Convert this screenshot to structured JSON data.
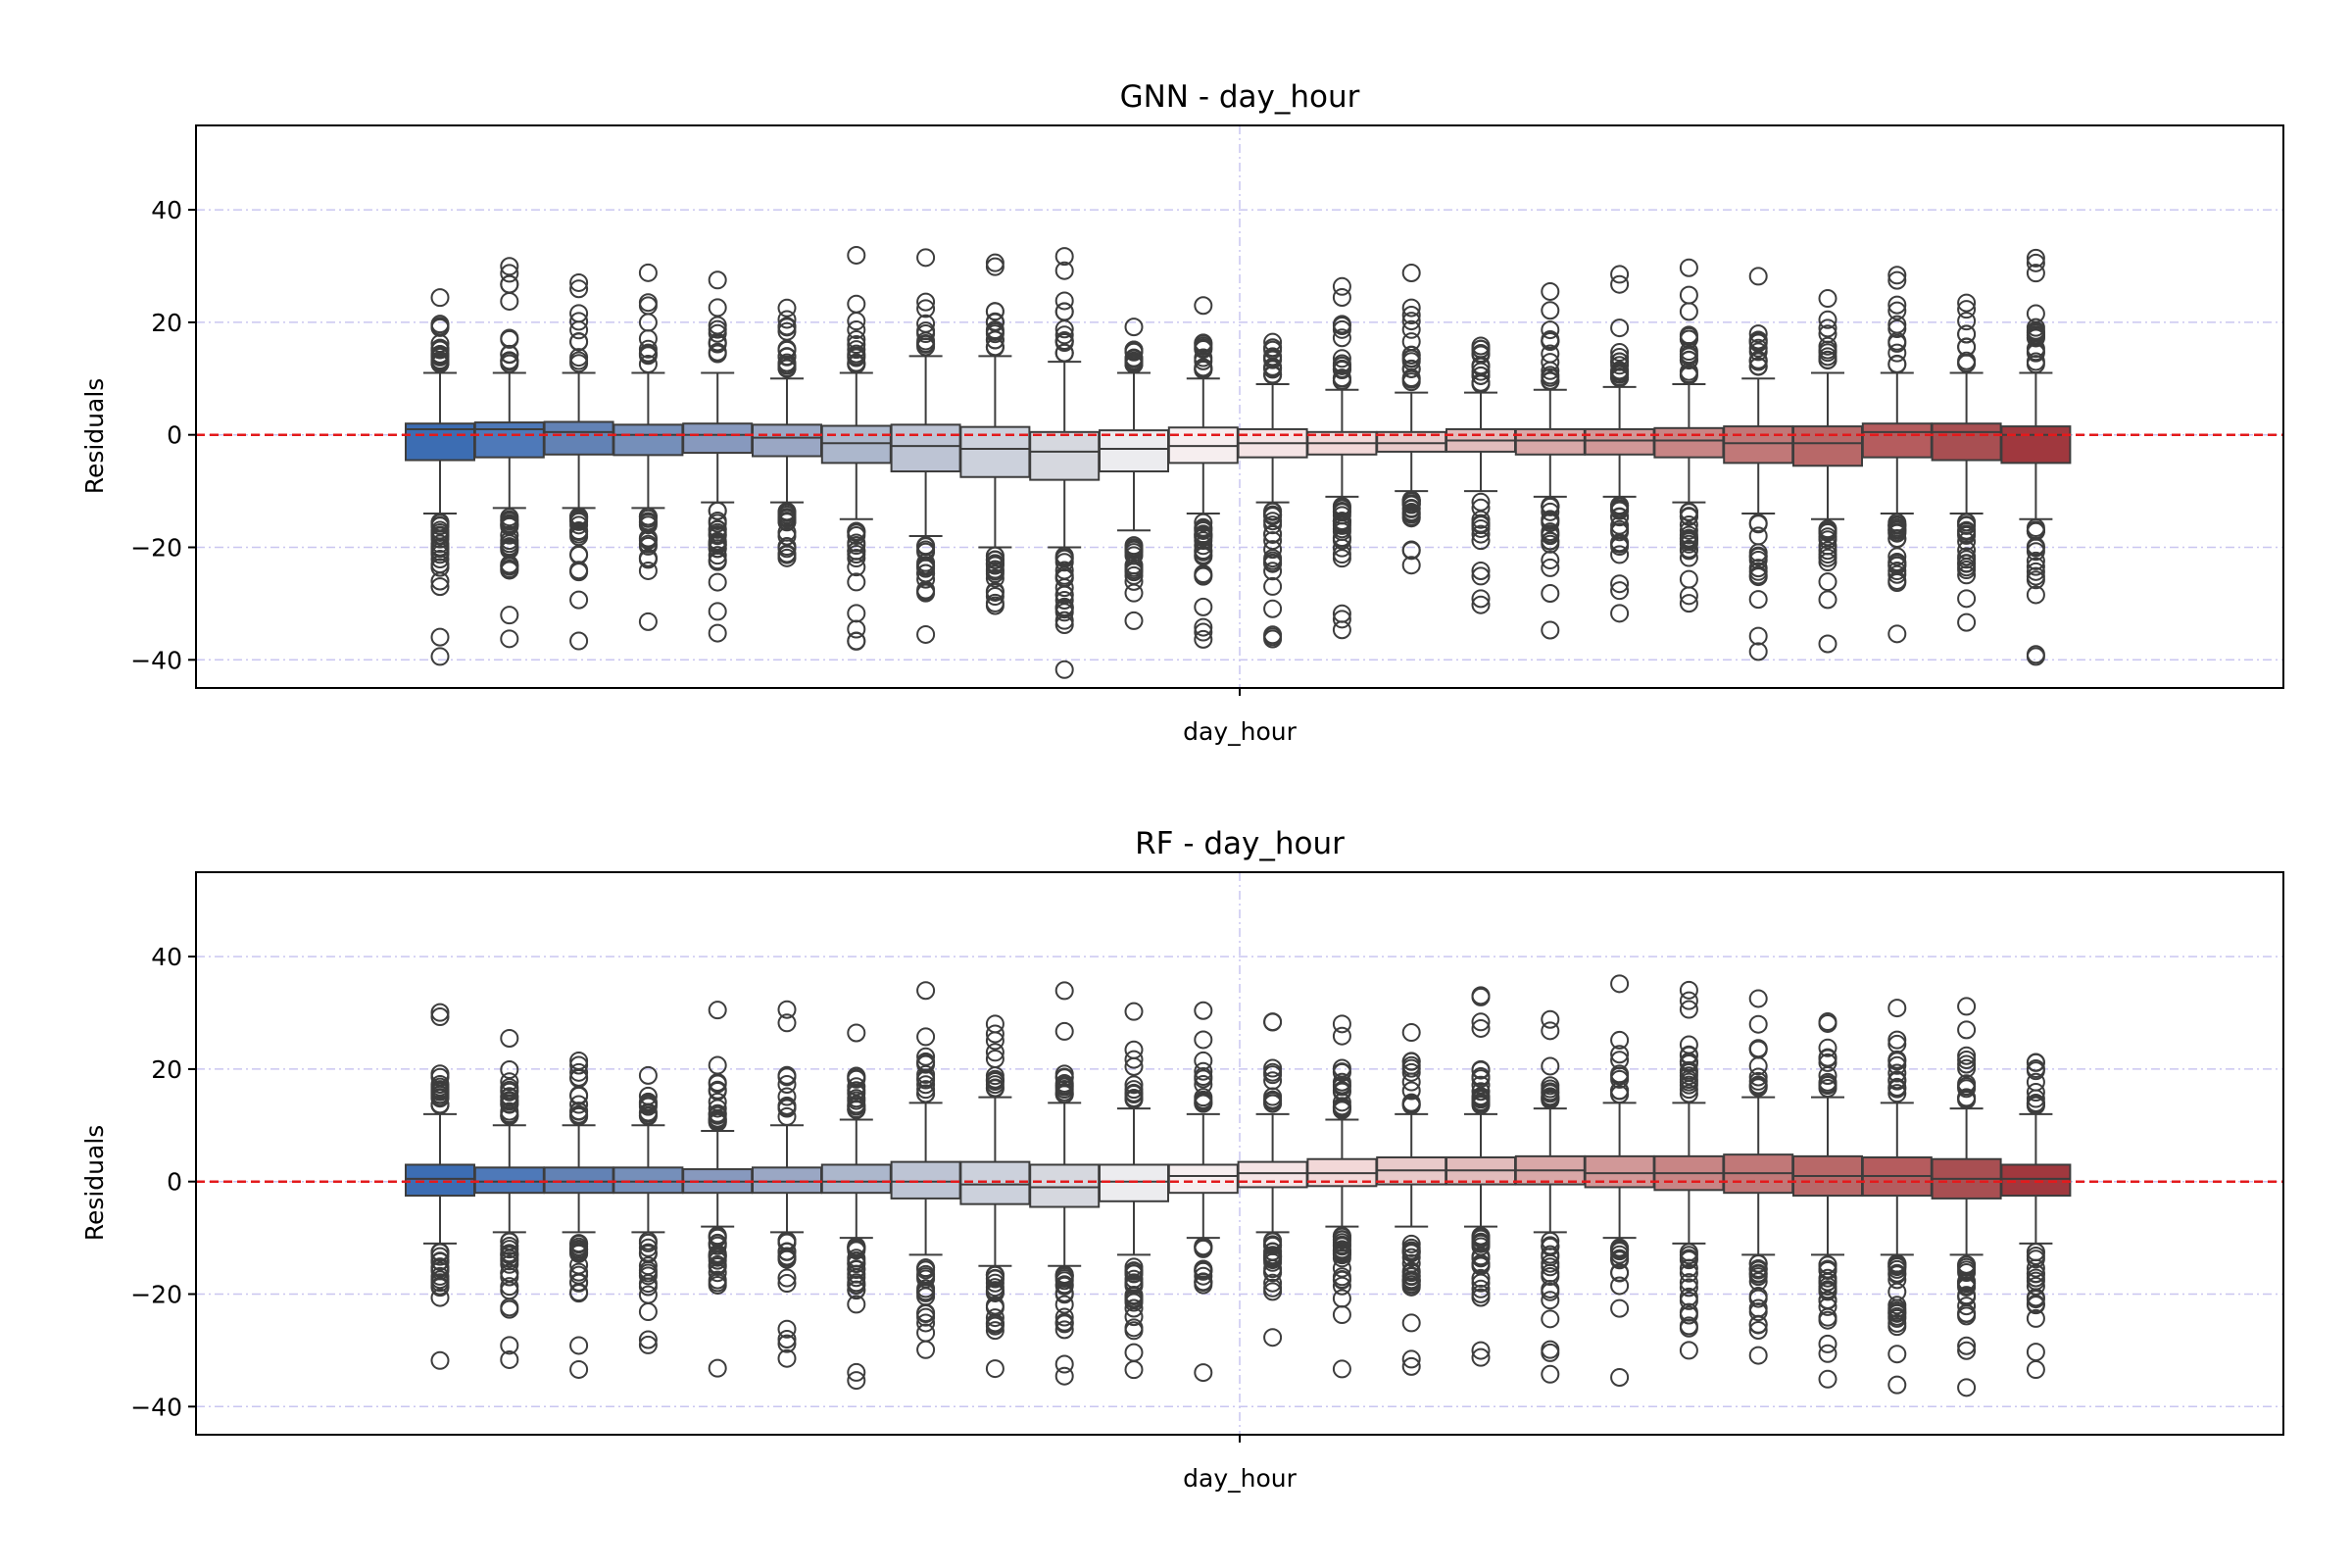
{
  "chart_data": [
    {
      "type": "box",
      "title": "GNN - day_hour",
      "xlabel": "day_hour",
      "ylabel": "Residuals",
      "ylim": [
        -45,
        55
      ],
      "yticks": [
        -40,
        -20,
        0,
        20,
        40
      ],
      "grid": true,
      "reference_line": 0,
      "colors": [
        "#3c6db3",
        "#4e79b9",
        "#6282b5",
        "#758fba",
        "#8799be",
        "#9aa7c4",
        "#acb7cc",
        "#bdc4d4",
        "#ccd1dc",
        "#d6d8df",
        "#ececef",
        "#f6eeef",
        "#f5e4e5",
        "#f2d8d8",
        "#e9caca",
        "#e2bcbc",
        "#d9a8a8",
        "#d19898",
        "#c88585",
        "#c17878",
        "#b86868",
        "#b55c5e",
        "#a84f52",
        "#a0383e"
      ],
      "boxes": [
        {
          "q1": -4.5,
          "median": 1.0,
          "q3": 2.0,
          "whislo": -14,
          "whishi": 11
        },
        {
          "q1": -4.0,
          "median": 1.0,
          "q3": 2.2,
          "whislo": -13,
          "whishi": 11
        },
        {
          "q1": -3.5,
          "median": 0.5,
          "q3": 2.3,
          "whislo": -13,
          "whishi": 11
        },
        {
          "q1": -3.6,
          "median": 0.0,
          "q3": 1.8,
          "whislo": -13,
          "whishi": 11
        },
        {
          "q1": -3.2,
          "median": 0.0,
          "q3": 2.0,
          "whislo": -12,
          "whishi": 11
        },
        {
          "q1": -3.8,
          "median": -0.5,
          "q3": 1.8,
          "whislo": -12,
          "whishi": 10
        },
        {
          "q1": -5.0,
          "median": -1.5,
          "q3": 1.6,
          "whislo": -15,
          "whishi": 11
        },
        {
          "q1": -6.5,
          "median": -2.0,
          "q3": 1.8,
          "whislo": -18,
          "whishi": 14
        },
        {
          "q1": -7.5,
          "median": -2.5,
          "q3": 1.4,
          "whislo": -20,
          "whishi": 14
        },
        {
          "q1": -8.0,
          "median": -3.0,
          "q3": 0.5,
          "whislo": -20,
          "whishi": 13
        },
        {
          "q1": -6.5,
          "median": -2.5,
          "q3": 0.8,
          "whislo": -17,
          "whishi": 11
        },
        {
          "q1": -5.0,
          "median": -2.0,
          "q3": 1.3,
          "whislo": -14,
          "whishi": 10
        },
        {
          "q1": -4.0,
          "median": -1.5,
          "q3": 1.0,
          "whislo": -12,
          "whishi": 9
        },
        {
          "q1": -3.5,
          "median": -1.5,
          "q3": 0.5,
          "whislo": -11,
          "whishi": 8
        },
        {
          "q1": -3.0,
          "median": -1.5,
          "q3": 0.5,
          "whislo": -10,
          "whishi": 7.5
        },
        {
          "q1": -3.0,
          "median": -1.0,
          "q3": 1.0,
          "whislo": -10,
          "whishi": 7.5
        },
        {
          "q1": -3.5,
          "median": -1.0,
          "q3": 1.0,
          "whislo": -11,
          "whishi": 8
        },
        {
          "q1": -3.5,
          "median": -1.0,
          "q3": 1.0,
          "whislo": -11,
          "whishi": 8.5
        },
        {
          "q1": -4.0,
          "median": -1.0,
          "q3": 1.2,
          "whislo": -12,
          "whishi": 9
        },
        {
          "q1": -5.0,
          "median": -1.5,
          "q3": 1.5,
          "whislo": -14,
          "whishi": 10
        },
        {
          "q1": -5.5,
          "median": -1.5,
          "q3": 1.5,
          "whislo": -15,
          "whishi": 11
        },
        {
          "q1": -4.0,
          "median": 0.5,
          "q3": 2.0,
          "whislo": -14,
          "whishi": 11
        },
        {
          "q1": -4.5,
          "median": 0.5,
          "q3": 2.0,
          "whislo": -14,
          "whishi": 11
        },
        {
          "q1": -5.0,
          "median": 0.0,
          "q3": 1.5,
          "whislo": -15,
          "whishi": 11
        }
      ]
    },
    {
      "type": "box",
      "title": "RF - day_hour",
      "xlabel": "day_hour",
      "ylabel": "Residuals",
      "ylim": [
        -45,
        55
      ],
      "yticks": [
        -40,
        -20,
        0,
        20,
        40
      ],
      "grid": true,
      "reference_line": 0,
      "colors": [
        "#3c6db3",
        "#4e79b9",
        "#6282b5",
        "#758fba",
        "#8799be",
        "#9aa7c4",
        "#acb7cc",
        "#bdc4d4",
        "#ccd1dc",
        "#d6d8df",
        "#ececef",
        "#f6eeef",
        "#f5e4e5",
        "#f2d8d8",
        "#e9caca",
        "#e2bcbc",
        "#d9a8a8",
        "#d19898",
        "#c88585",
        "#c17878",
        "#b86868",
        "#b55c5e",
        "#a84f52",
        "#a0383e"
      ],
      "boxes": [
        {
          "q1": -2.5,
          "median": 0.5,
          "q3": 3.0,
          "whislo": -11,
          "whishi": 12
        },
        {
          "q1": -2.0,
          "median": 0.0,
          "q3": 2.5,
          "whislo": -9,
          "whishi": 10
        },
        {
          "q1": -2.0,
          "median": 0.0,
          "q3": 2.5,
          "whislo": -9,
          "whishi": 10
        },
        {
          "q1": -2.0,
          "median": 0.0,
          "q3": 2.5,
          "whislo": -9,
          "whishi": 10
        },
        {
          "q1": -2.0,
          "median": 0.0,
          "q3": 2.2,
          "whislo": -8,
          "whishi": 9
        },
        {
          "q1": -2.0,
          "median": 0.0,
          "q3": 2.5,
          "whislo": -9,
          "whishi": 10
        },
        {
          "q1": -2.0,
          "median": 0.0,
          "q3": 3.0,
          "whislo": -10,
          "whishi": 11
        },
        {
          "q1": -3.0,
          "median": 0.0,
          "q3": 3.5,
          "whislo": -13,
          "whishi": 14
        },
        {
          "q1": -4.0,
          "median": -0.5,
          "q3": 3.5,
          "whislo": -15,
          "whishi": 15
        },
        {
          "q1": -4.5,
          "median": -1.0,
          "q3": 3.0,
          "whislo": -15,
          "whishi": 14
        },
        {
          "q1": -3.5,
          "median": 0.0,
          "q3": 3.0,
          "whislo": -13,
          "whishi": 13
        },
        {
          "q1": -2.0,
          "median": 1.0,
          "q3": 3.0,
          "whislo": -10,
          "whishi": 12
        },
        {
          "q1": -1.0,
          "median": 1.5,
          "q3": 3.5,
          "whislo": -9,
          "whishi": 12
        },
        {
          "q1": -0.8,
          "median": 1.5,
          "q3": 4.0,
          "whislo": -8,
          "whishi": 11
        },
        {
          "q1": -0.5,
          "median": 2.0,
          "q3": 4.3,
          "whislo": -8,
          "whishi": 12
        },
        {
          "q1": -0.5,
          "median": 2.0,
          "q3": 4.3,
          "whislo": -8,
          "whishi": 12
        },
        {
          "q1": -0.5,
          "median": 2.0,
          "q3": 4.5,
          "whislo": -9,
          "whishi": 13
        },
        {
          "q1": -1.0,
          "median": 1.5,
          "q3": 4.5,
          "whislo": -10,
          "whishi": 14
        },
        {
          "q1": -1.5,
          "median": 1.5,
          "q3": 4.5,
          "whislo": -11,
          "whishi": 14
        },
        {
          "q1": -2.0,
          "median": 1.5,
          "q3": 4.8,
          "whislo": -13,
          "whishi": 15
        },
        {
          "q1": -2.5,
          "median": 1.0,
          "q3": 4.5,
          "whislo": -13,
          "whishi": 15
        },
        {
          "q1": -2.5,
          "median": 1.0,
          "q3": 4.3,
          "whislo": -13,
          "whishi": 14
        },
        {
          "q1": -3.0,
          "median": 0.5,
          "q3": 4.0,
          "whislo": -13,
          "whishi": 13
        },
        {
          "q1": -2.5,
          "median": 0.5,
          "q3": 3.0,
          "whislo": -11,
          "whishi": 12
        }
      ]
    }
  ]
}
